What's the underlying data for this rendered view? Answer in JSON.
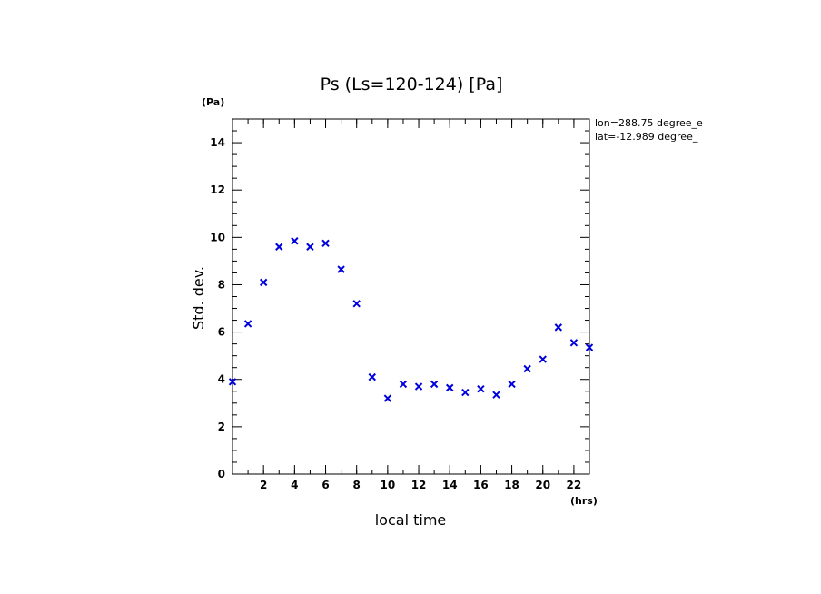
{
  "chart_data": {
    "type": "scatter",
    "title": "Ps (Ls=120-124) [Pa]",
    "xlabel": "local time",
    "ylabel": "Std. dev.",
    "x_unit": "(hrs)",
    "y_unit": "(Pa)",
    "xlim": [
      0,
      23
    ],
    "ylim": [
      0,
      15
    ],
    "x_ticks": [
      2,
      4,
      6,
      8,
      10,
      12,
      14,
      16,
      18,
      20,
      22
    ],
    "x_tick_labels": [
      "2",
      "4",
      "6",
      "8",
      "10",
      "12",
      "14",
      "16",
      "18",
      "20",
      "22"
    ],
    "y_ticks": [
      0,
      2,
      4,
      6,
      8,
      10,
      12,
      14
    ],
    "y_tick_labels": [
      "0",
      "2",
      "4",
      "6",
      "8",
      "10",
      "12",
      "14"
    ],
    "annotations": [
      "lon=288.75 degree_e",
      "lat=-12.989 degree_"
    ],
    "marker": "x",
    "marker_color": "#0000dd",
    "series": [
      {
        "name": "Std. dev.",
        "x": [
          0,
          1,
          2,
          3,
          4,
          5,
          6,
          7,
          8,
          9,
          10,
          11,
          12,
          13,
          14,
          15,
          16,
          17,
          18,
          19,
          20,
          21,
          22,
          23
        ],
        "y": [
          3.9,
          6.35,
          8.1,
          9.6,
          9.85,
          9.6,
          9.75,
          8.65,
          7.2,
          4.1,
          3.2,
          3.8,
          3.7,
          3.8,
          3.65,
          3.45,
          3.6,
          3.35,
          3.8,
          4.45,
          4.85,
          6.2,
          5.55,
          5.35
        ]
      }
    ]
  }
}
